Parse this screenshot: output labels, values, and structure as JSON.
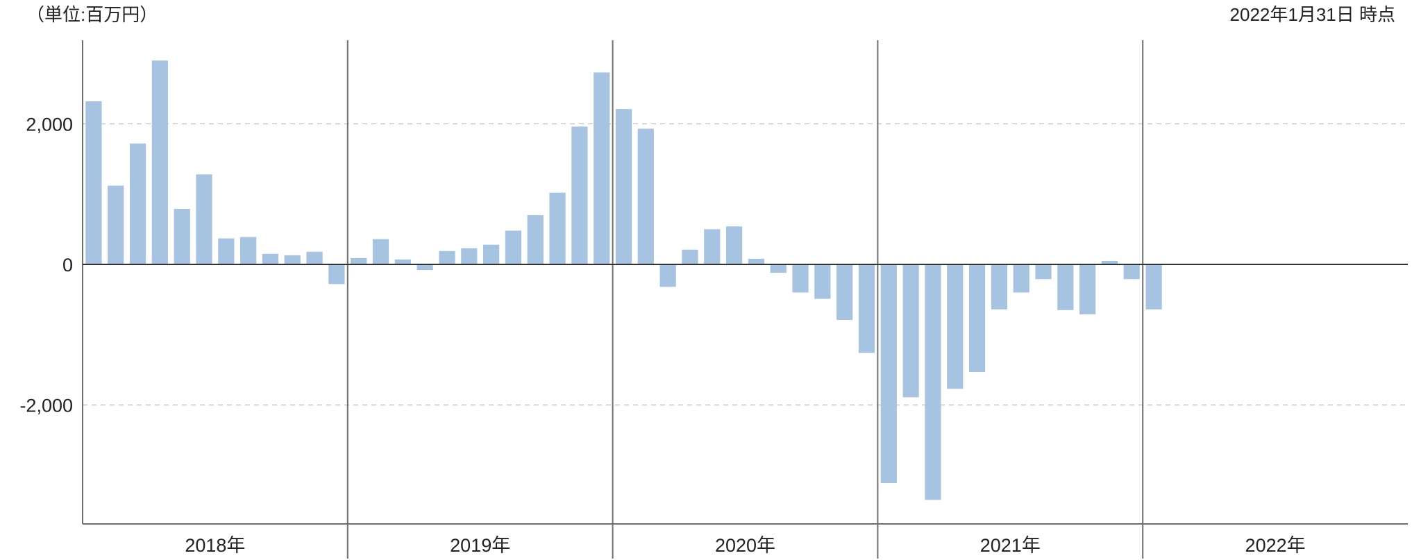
{
  "header": {
    "unit_label": "（単位:百万円）",
    "as_of_label": "2022年1月31日 時点"
  },
  "colors": {
    "bar": "#a6c4e2",
    "negative_label": "#e8141c",
    "axis": "#333333",
    "grid": "#c8c8c8",
    "separator": "#6e6e6e"
  },
  "chart_data": {
    "type": "bar",
    "title": "",
    "xlabel": "",
    "ylabel": "",
    "unit": "（単位:百万円）",
    "ylim": [
      -3700,
      3200
    ],
    "grid": {
      "horizontal": true,
      "style": "dashed",
      "values": [
        2000,
        -2000
      ]
    },
    "y_ticks": [
      {
        "value": 2000,
        "label": "2,000"
      },
      {
        "value": 0,
        "label": "0"
      },
      {
        "value": -2000,
        "label": "-2,000"
      }
    ],
    "year_groups": [
      {
        "label": "2018年",
        "months": 12
      },
      {
        "label": "2019年",
        "months": 12
      },
      {
        "label": "2020年",
        "months": 12
      },
      {
        "label": "2021年",
        "months": 12
      },
      {
        "label": "2022年",
        "months": 12
      }
    ],
    "series": [
      {
        "values": [
          2320,
          1120,
          1720,
          2900,
          790,
          1280,
          370,
          390,
          150,
          130,
          180,
          -280,
          90,
          360,
          70,
          -80,
          190,
          230,
          280,
          480,
          700,
          1020,
          1960,
          2730,
          2210,
          1930,
          -320,
          210,
          500,
          540,
          80,
          -120,
          -400,
          -490,
          -790,
          -1260,
          -3110,
          -1890,
          -3350,
          -1770,
          -1530,
          -640,
          -400,
          -210,
          -650,
          -710,
          50,
          -210,
          -640,
          null,
          null,
          null,
          null,
          null,
          null,
          null,
          null,
          null,
          null,
          null
        ]
      }
    ]
  }
}
